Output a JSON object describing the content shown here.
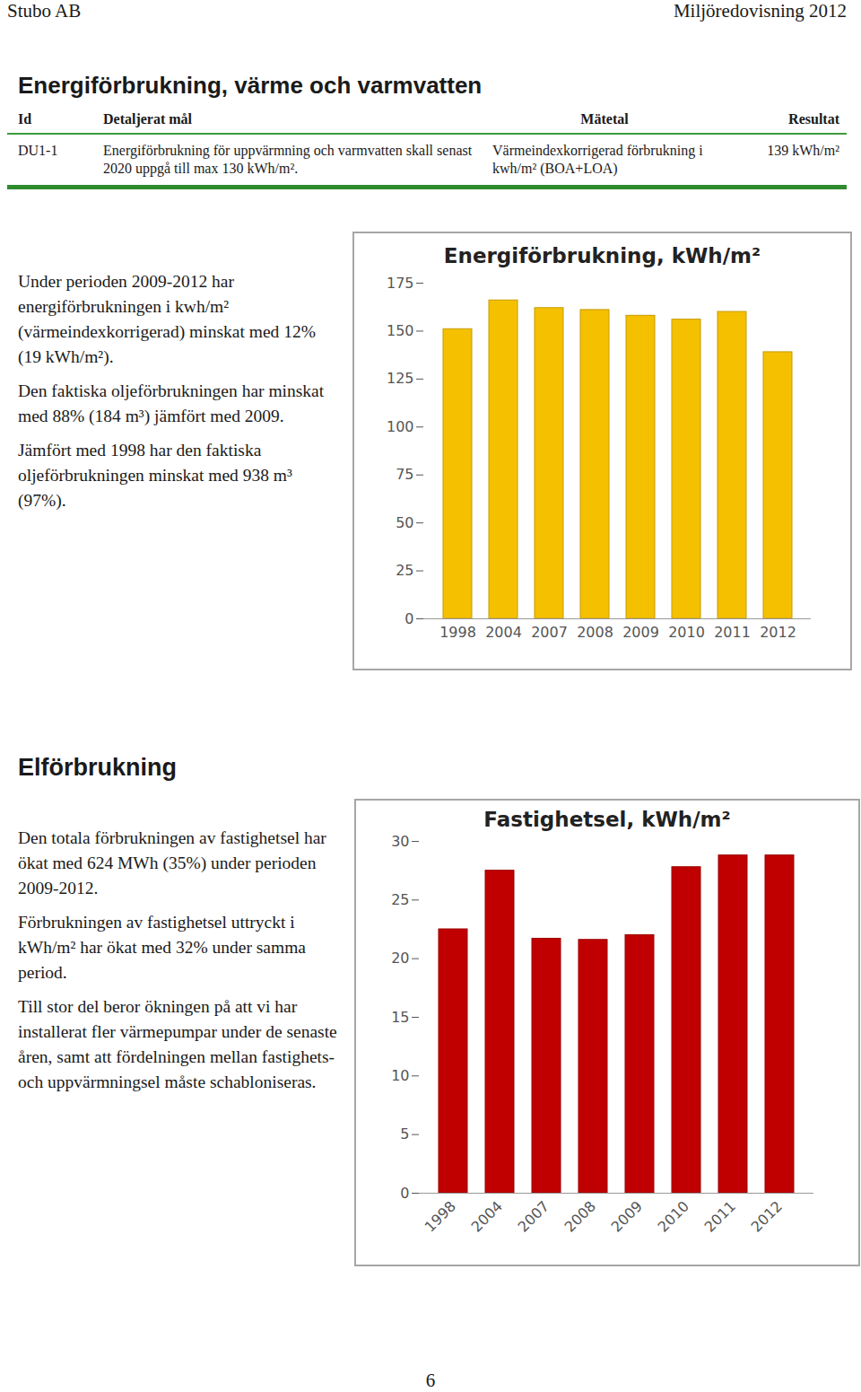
{
  "header": {
    "left": "Stubo AB",
    "right": "Miljöredovisning 2012"
  },
  "sections": [
    {
      "heading": "Energiförbrukning, värme och varmvatten",
      "table": {
        "columns": [
          "Id",
          "Detaljerat mål",
          "Mätetal",
          "Resultat"
        ],
        "rows": [
          [
            "DU1-1",
            "Energiförbrukning för uppvärmning och varmvatten skall senast 2020 uppgå till max 130 kWh/m².",
            "Värmeindexkorrigerad förbrukning i kwh/m² (BOA+LOA)",
            "139 kWh/m²"
          ]
        ]
      },
      "paragraphs": [
        "Under perioden 2009-2012 har energiförbrukningen i kwh/m² (värmeindexkorrigerad) minskat med 12% (19 kWh/m²).",
        "Den faktiska oljeförbrukningen har minskat med 88% (184 m³) jämfört med 2009.",
        "Jämfört med 1998 har den faktiska oljeförbrukningen minskat med 938 m³ (97%)."
      ]
    },
    {
      "heading": "Elförbrukning",
      "paragraphs": [
        "Den totala förbrukningen av fastighetsel har ökat med 624 MWh (35%) under perioden 2009-2012.",
        "Förbrukningen av fastighetsel uttryckt i kWh/m² har ökat med 32% under samma period.",
        "Till stor del beror ökningen på att vi har installerat fler värmepumpar under de senaste åren, samt att fördelningen mellan fastighets- och uppvärmningsel måste schabloniseras."
      ]
    }
  ],
  "chart_data": [
    {
      "type": "bar",
      "title": "Energiförbrukning, kWh/m²",
      "categories": [
        "1998",
        "2004",
        "2007",
        "2008",
        "2009",
        "2010",
        "2011",
        "2012"
      ],
      "values": [
        151,
        166,
        162,
        161,
        158,
        156,
        160,
        139
      ],
      "color": "#f5c000",
      "ylim": [
        0,
        175
      ],
      "yticks": [
        0,
        25,
        50,
        75,
        100,
        125,
        150,
        175
      ],
      "grid": false
    },
    {
      "type": "bar",
      "title": "Fastighetsel, kWh/m²",
      "categories": [
        "1998",
        "2004",
        "2007",
        "2008",
        "2009",
        "2010",
        "2011",
        "2012"
      ],
      "values": [
        22.5,
        27.5,
        21.7,
        21.6,
        22,
        27.8,
        28.8,
        28.8
      ],
      "color": "#c00000",
      "ylim": [
        0,
        30
      ],
      "yticks": [
        0,
        5,
        10,
        15,
        20,
        25,
        30
      ],
      "grid": false
    }
  ],
  "page_number": "6"
}
